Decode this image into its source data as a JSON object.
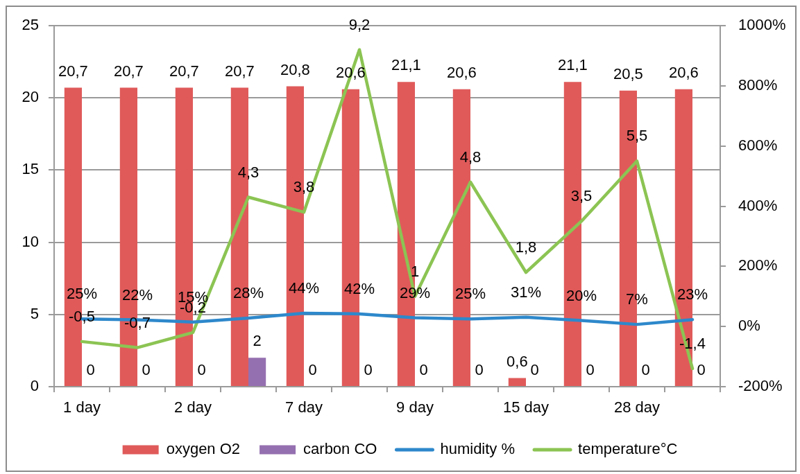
{
  "chart_data": {
    "type": "bar",
    "categories": [
      "1 day",
      null,
      "2 day",
      null,
      "7 day",
      null,
      "9 day",
      null,
      "15 day",
      null,
      "28 day",
      null
    ],
    "series": [
      {
        "name": "oxygen O2",
        "color": "#e05a5a",
        "values": [
          20.7,
          20.7,
          20.7,
          20.7,
          20.8,
          20.6,
          21.1,
          20.6,
          0.6,
          21.1,
          20.5,
          20.6
        ],
        "value_labels": [
          "20,7",
          "20,7",
          "20,7",
          "20,7",
          "20,8",
          "20,6",
          "21,1",
          "20,6",
          "0,6",
          "21,1",
          "20,5",
          "20,6"
        ]
      },
      {
        "name": "carbon CO",
        "color": "#9570b0",
        "values": [
          0,
          0,
          0,
          2,
          0,
          0,
          0,
          0,
          0,
          0,
          0,
          0
        ],
        "value_labels": [
          "0",
          "0",
          "0",
          "2",
          "0",
          "0",
          "0",
          "0",
          "0",
          "0",
          "0",
          "0"
        ]
      },
      {
        "name": "humidity %",
        "type": "line",
        "axis": "y2",
        "color": "#2e88cb",
        "values": [
          0.25,
          0.22,
          0.15,
          0.28,
          0.44,
          0.42,
          0.29,
          0.25,
          0.31,
          0.2,
          0.07,
          0.23
        ],
        "value_labels": [
          "25%",
          "22%",
          "15%",
          "28%",
          "44%",
          "42%",
          "29%",
          "25%",
          "31%",
          "20%",
          "7%",
          "23%"
        ]
      },
      {
        "name": "temperature°C",
        "type": "line",
        "axis": "y2",
        "color": "#8cc453",
        "values": [
          -0.5,
          -0.7,
          -0.2,
          4.3,
          3.8,
          9.2,
          1,
          4.8,
          1.8,
          3.5,
          5.5,
          -1.4
        ],
        "value_labels": [
          "-0,5",
          "-0,7",
          "-0,2",
          "4,3",
          "3,8",
          "9,2",
          "1",
          "4,8",
          "1,8",
          "3,5",
          "5,5",
          "-1,4"
        ]
      }
    ],
    "ylim": [
      0,
      25
    ],
    "yticks": [
      0,
      5,
      10,
      15,
      20,
      25
    ],
    "y2lim": [
      -2,
      10
    ],
    "y2ticks": [
      {
        "value": -2,
        "label": "-200%"
      },
      {
        "value": 0,
        "label": "0%"
      },
      {
        "value": 2,
        "label": "200%"
      },
      {
        "value": 4,
        "label": "400%"
      },
      {
        "value": 6,
        "label": "600%"
      },
      {
        "value": 8,
        "label": "800%"
      },
      {
        "value": 10,
        "label": "1000%"
      }
    ],
    "grid": "y",
    "legend": "bottom",
    "marker": "none"
  }
}
